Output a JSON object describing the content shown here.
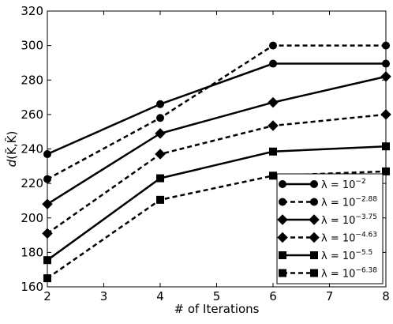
{
  "chart_data": {
    "type": "line",
    "title": "",
    "xlabel": "# of Iterations",
    "ylabel_italic_base": "d",
    "ylabel_paren": "(K̃,K̂)",
    "xlim": [
      2,
      8
    ],
    "ylim": [
      160,
      320
    ],
    "x_ticks": [
      2,
      3,
      4,
      5,
      6,
      7,
      8
    ],
    "y_ticks": [
      160,
      180,
      200,
      220,
      240,
      260,
      280,
      300,
      320
    ],
    "grid": false,
    "legend_position": "bottom-right",
    "series": [
      {
        "name": "λ=10^{-2}",
        "label_base": "λ = 10",
        "label_exp": "−2",
        "marker": "circle",
        "dash": "solid",
        "x": [
          2,
          4,
          6,
          8
        ],
        "y": [
          237,
          266,
          289.5,
          289.5
        ]
      },
      {
        "name": "λ=10^{-2.88}",
        "label_base": "λ = 10",
        "label_exp": "−2.88",
        "marker": "circle",
        "dash": "dashed",
        "x": [
          2,
          4,
          6,
          8
        ],
        "y": [
          222.5,
          258,
          300,
          300
        ]
      },
      {
        "name": "λ=10^{-3.75}",
        "label_base": "λ = 10",
        "label_exp": "−3.75",
        "marker": "diamond",
        "dash": "solid",
        "x": [
          2,
          4,
          6,
          8
        ],
        "y": [
          208,
          249,
          267,
          282
        ]
      },
      {
        "name": "λ=10^{-4.63}",
        "label_base": "λ = 10",
        "label_exp": "−4.63",
        "marker": "diamond",
        "dash": "dashed",
        "x": [
          2,
          4,
          6,
          8
        ],
        "y": [
          191,
          237,
          253.5,
          260
        ]
      },
      {
        "name": "λ=10^{-5.5}",
        "label_base": "λ = 10",
        "label_exp": "−5.5",
        "marker": "square",
        "dash": "solid",
        "x": [
          2,
          4,
          6,
          8
        ],
        "y": [
          175.5,
          223,
          238.5,
          241.5
        ]
      },
      {
        "name": "λ=10^{-6.38}",
        "label_base": "λ = 10",
        "label_exp": "−6.38",
        "marker": "square",
        "dash": "dashed",
        "x": [
          2,
          4,
          6,
          8
        ],
        "y": [
          165,
          210.5,
          224.5,
          227
        ]
      }
    ]
  }
}
